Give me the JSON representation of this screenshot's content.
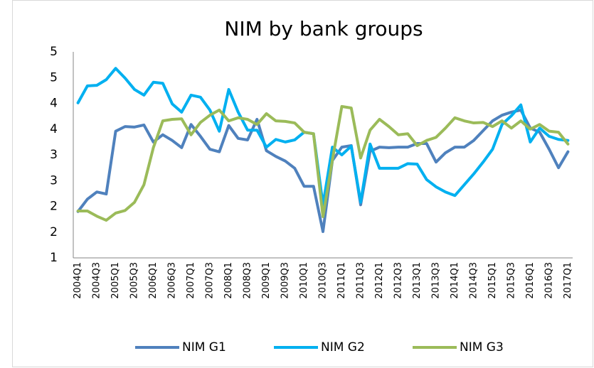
{
  "chart_data": {
    "type": "line",
    "title": "NIM by bank groups",
    "categories": [
      "2004Q1",
      null,
      "2004Q3",
      null,
      "2005Q1",
      null,
      "2005Q3",
      null,
      "2006Q1",
      null,
      "2006Q3",
      null,
      "2007Q1",
      null,
      "2007Q3",
      null,
      "2008Q1",
      null,
      "2008Q3",
      null,
      "2009Q1",
      null,
      "2009Q3",
      null,
      "2010Q1",
      null,
      "2010Q3",
      null,
      "2011Q1",
      null,
      "2011Q3",
      null,
      "2012Q1",
      null,
      "2012Q3",
      null,
      "2013Q1",
      null,
      "2013Q3",
      null,
      "2014Q1",
      null,
      "2014Q3",
      null,
      "2015Q1",
      null,
      "2015Q3",
      null,
      "2016Q1",
      null,
      "2016Q3",
      null,
      "2017Q1"
    ],
    "series": [
      {
        "name": "NIM G1",
        "color": "#4f81bd",
        "values": [
          1.9,
          2.14,
          2.28,
          2.24,
          3.46,
          3.55,
          3.54,
          3.58,
          3.25,
          3.39,
          3.28,
          3.14,
          3.59,
          3.36,
          3.11,
          3.06,
          3.57,
          3.32,
          3.29,
          3.69,
          3.08,
          2.97,
          2.88,
          2.74,
          2.39,
          2.39,
          1.51,
          2.89,
          3.15,
          3.18,
          2.03,
          3.07,
          3.15,
          3.14,
          3.15,
          3.15,
          3.22,
          3.22,
          2.86,
          3.04,
          3.15,
          3.15,
          3.28,
          3.47,
          3.66,
          3.77,
          3.83,
          3.87,
          3.52,
          3.44,
          3.11,
          2.75,
          3.06
        ]
      },
      {
        "name": "NIM G2",
        "color": "#00b0f0",
        "values": [
          4.01,
          4.34,
          4.35,
          4.46,
          4.68,
          4.49,
          4.27,
          4.16,
          4.41,
          4.39,
          3.99,
          3.83,
          4.16,
          4.12,
          3.87,
          3.46,
          4.27,
          3.83,
          3.48,
          3.48,
          3.15,
          3.3,
          3.25,
          3.29,
          3.44,
          3.41,
          2.03,
          3.15,
          3.0,
          3.17,
          2.08,
          3.21,
          2.74,
          2.74,
          2.74,
          2.83,
          2.82,
          2.52,
          2.38,
          2.28,
          2.21,
          2.42,
          2.63,
          2.86,
          3.11,
          3.59,
          3.76,
          3.97,
          3.25,
          3.52,
          3.36,
          3.3,
          3.28
        ]
      },
      {
        "name": "NIM G3",
        "color": "#9bbb59",
        "values": [
          1.91,
          1.91,
          1.81,
          1.73,
          1.87,
          1.92,
          2.08,
          2.42,
          3.14,
          3.66,
          3.69,
          3.7,
          3.39,
          3.63,
          3.77,
          3.87,
          3.66,
          3.72,
          3.69,
          3.59,
          3.8,
          3.66,
          3.65,
          3.62,
          3.44,
          3.41,
          1.8,
          2.9,
          3.94,
          3.91,
          2.94,
          3.48,
          3.69,
          3.55,
          3.39,
          3.41,
          3.18,
          3.28,
          3.34,
          3.52,
          3.72,
          3.66,
          3.62,
          3.63,
          3.55,
          3.66,
          3.52,
          3.66,
          3.5,
          3.59,
          3.46,
          3.44,
          3.21
        ]
      }
    ],
    "ylim": [
      1,
      5
    ],
    "yticks": [
      1,
      {
        "value": 1.5,
        "label": "2"
      },
      2,
      {
        "value": 2.5,
        "label": "3"
      },
      3,
      {
        "value": 3.5,
        "label": "4"
      },
      4,
      {
        "value": 4.5,
        "label": "5"
      },
      5
    ],
    "grid": false,
    "legend": "bottom"
  }
}
